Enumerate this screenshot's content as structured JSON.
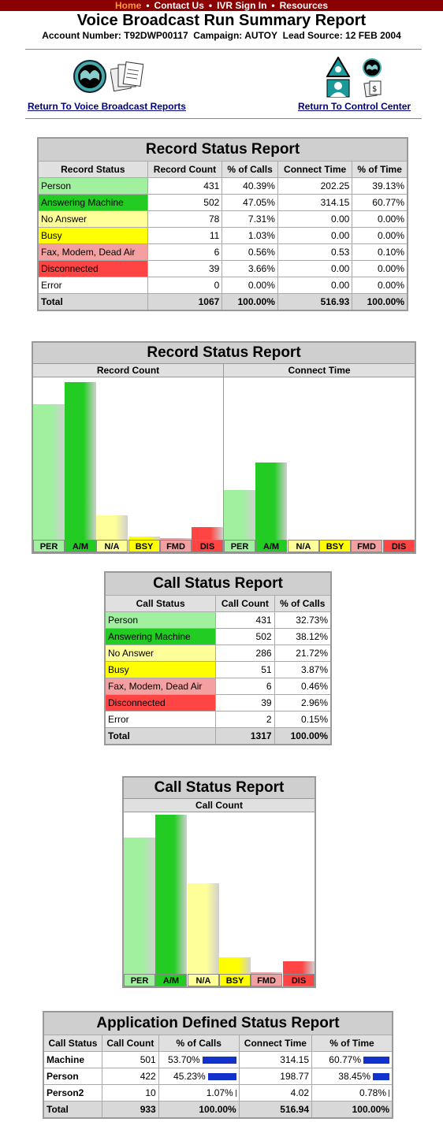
{
  "nav": {
    "items": [
      {
        "label": "Home",
        "active": true
      },
      {
        "label": "Contact Us",
        "active": false
      },
      {
        "label": "IVR Sign In",
        "active": false
      },
      {
        "label": "Resources",
        "active": false
      }
    ],
    "separator": "•"
  },
  "header": {
    "title": "Voice Broadcast Run Summary Report",
    "account_label": "Account Number:",
    "account": "T92DWP00117",
    "campaign_label": "Campaign:",
    "campaign": "AUTOY",
    "lead_label": "Lead Source:",
    "lead": "12 FEB 2004"
  },
  "links": {
    "reports": "Return To Voice Broadcast Reports",
    "control": "Return To Control Center"
  },
  "record_status": {
    "title": "Record Status Report",
    "headers": [
      "Record Status",
      "Record Count",
      "% of Calls",
      "Connect Time",
      "% of Time"
    ],
    "rows": [
      {
        "status": "Person",
        "count": "431",
        "pct_calls": "40.39%",
        "time": "202.25",
        "pct_time": "39.13%",
        "cls": "c-per"
      },
      {
        "status": "Answering Machine",
        "count": "502",
        "pct_calls": "47.05%",
        "time": "314.15",
        "pct_time": "60.77%",
        "cls": "c-am"
      },
      {
        "status": "No Answer",
        "count": "78",
        "pct_calls": "7.31%",
        "time": "0.00",
        "pct_time": "0.00%",
        "cls": "c-na"
      },
      {
        "status": "Busy",
        "count": "11",
        "pct_calls": "1.03%",
        "time": "0.00",
        "pct_time": "0.00%",
        "cls": "c-bsy"
      },
      {
        "status": "Fax, Modem, Dead Air",
        "count": "6",
        "pct_calls": "0.56%",
        "time": "0.53",
        "pct_time": "0.10%",
        "cls": "c-fmd"
      },
      {
        "status": "Disconnected",
        "count": "39",
        "pct_calls": "3.66%",
        "time": "0.00",
        "pct_time": "0.00%",
        "cls": "c-dis"
      },
      {
        "status": "Error",
        "count": "0",
        "pct_calls": "0.00%",
        "time": "0.00",
        "pct_time": "0.00%",
        "cls": "c-err"
      }
    ],
    "total": {
      "status": "Total",
      "count": "1067",
      "pct_calls": "100.00%",
      "time": "516.93",
      "pct_time": "100.00%"
    }
  },
  "chart_data": [
    {
      "type": "bar",
      "title": "Record Status Report",
      "panel": "Record Count",
      "categories": [
        "PER",
        "A/M",
        "N/A",
        "BSY",
        "FMD",
        "DIS"
      ],
      "values": [
        431,
        502,
        78,
        11,
        6,
        39
      ],
      "colors": [
        "#a0f0a0",
        "#22cc22",
        "#ffff99",
        "#ffff00",
        "#f5a0a0",
        "#ff4444"
      ]
    },
    {
      "type": "bar",
      "title": "Record Status Report",
      "panel": "Connect Time",
      "categories": [
        "PER",
        "A/M",
        "N/A",
        "BSY",
        "FMD",
        "DIS"
      ],
      "values": [
        202.25,
        314.15,
        0,
        0,
        0.53,
        0
      ],
      "colors": [
        "#a0f0a0",
        "#22cc22",
        "#ffff99",
        "#ffff00",
        "#f5a0a0",
        "#ff4444"
      ]
    },
    {
      "type": "bar",
      "title": "Call Status Report",
      "panel": "Call Count",
      "categories": [
        "PER",
        "A/M",
        "N/A",
        "BSY",
        "FMD",
        "DIS"
      ],
      "values": [
        431,
        502,
        286,
        51,
        6,
        39
      ],
      "colors": [
        "#a0f0a0",
        "#22cc22",
        "#ffff99",
        "#ffff00",
        "#f5a0a0",
        "#ff4444"
      ]
    }
  ],
  "call_status": {
    "title": "Call Status Report",
    "headers": [
      "Call Status",
      "Call Count",
      "% of Calls"
    ],
    "rows": [
      {
        "status": "Person",
        "count": "431",
        "pct": "32.73%",
        "cls": "c-per"
      },
      {
        "status": "Answering Machine",
        "count": "502",
        "pct": "38.12%",
        "cls": "c-am"
      },
      {
        "status": "No Answer",
        "count": "286",
        "pct": "21.72%",
        "cls": "c-na"
      },
      {
        "status": "Busy",
        "count": "51",
        "pct": "3.87%",
        "cls": "c-bsy"
      },
      {
        "status": "Fax, Modem, Dead Air",
        "count": "6",
        "pct": "0.46%",
        "cls": "c-fmd"
      },
      {
        "status": "Disconnected",
        "count": "39",
        "pct": "2.96%",
        "cls": "c-dis"
      },
      {
        "status": "Error",
        "count": "2",
        "pct": "0.15%",
        "cls": "c-err"
      }
    ],
    "total": {
      "status": "Total",
      "count": "1317",
      "pct": "100.00%"
    }
  },
  "app_status": {
    "title": "Application Defined Status Report",
    "headers": [
      "Call Status",
      "Call Count",
      "% of Calls",
      "Connect Time",
      "% of Time"
    ],
    "rows": [
      {
        "status": "Machine",
        "count": "501",
        "pct_calls": "53.70%",
        "calls_frac": 0.537,
        "time": "314.15",
        "pct_time": "60.77%",
        "time_frac": 0.6077
      },
      {
        "status": "Person",
        "count": "422",
        "pct_calls": "45.23%",
        "calls_frac": 0.4523,
        "time": "198.77",
        "pct_time": "38.45%",
        "time_frac": 0.3845
      },
      {
        "status": "Person2",
        "count": "10",
        "pct_calls": "1.07%",
        "calls_frac": 0.0107,
        "time": "4.02",
        "pct_time": "0.78%",
        "time_frac": 0.0078
      }
    ],
    "total": {
      "status": "Total",
      "count": "933",
      "pct_calls": "100.00%",
      "time": "516.94",
      "pct_time": "100.00%"
    }
  }
}
